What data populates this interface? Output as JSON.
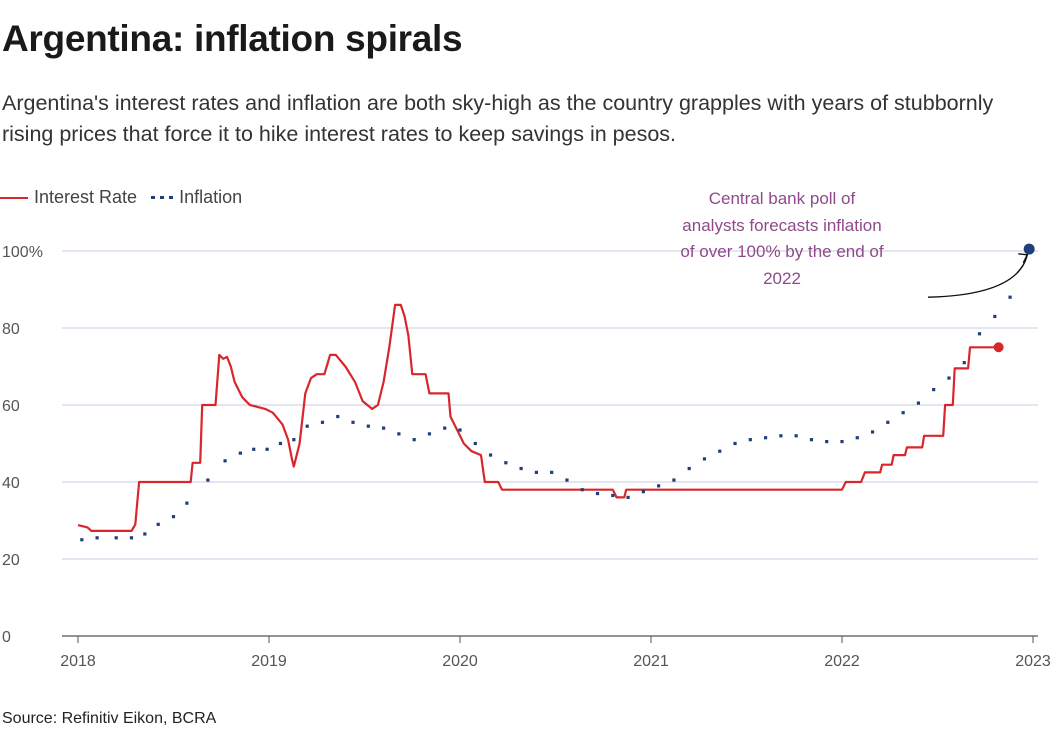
{
  "chart_data": {
    "type": "line",
    "title": "Argentina: inflation spirals",
    "subtitle": "Argentina's interest rates and inflation are both sky-high as the country grapples with years of stubbornly rising prices that force it to hike interest rates to keep savings in pesos.",
    "xlabel": "",
    "ylabel": "",
    "xlim": [
      2018,
      2023
    ],
    "ylim": [
      0,
      100
    ],
    "x_ticks": [
      2018,
      2019,
      2020,
      2021,
      2022,
      2023
    ],
    "x_tick_labels": [
      "2018",
      "2019",
      "2020",
      "2021",
      "2022",
      "2023"
    ],
    "y_ticks": [
      0,
      20,
      40,
      60,
      80,
      100
    ],
    "y_tick_labels": [
      "0",
      "20",
      "40",
      "60",
      "80",
      "100%"
    ],
    "grid": "horizontal",
    "legend_position": "top-left",
    "series": [
      {
        "name": "Interest Rate",
        "color": "#d8262c",
        "style": "line",
        "points": [
          [
            2018.0,
            28.8
          ],
          [
            2018.05,
            28.2
          ],
          [
            2018.07,
            27.3
          ],
          [
            2018.28,
            27.3
          ],
          [
            2018.3,
            29
          ],
          [
            2018.32,
            40
          ],
          [
            2018.59,
            40
          ],
          [
            2018.6,
            45
          ],
          [
            2018.64,
            45
          ],
          [
            2018.65,
            60
          ],
          [
            2018.72,
            60
          ],
          [
            2018.74,
            73
          ],
          [
            2018.76,
            72
          ],
          [
            2018.78,
            72.5
          ],
          [
            2018.8,
            70
          ],
          [
            2018.82,
            66
          ],
          [
            2018.86,
            62
          ],
          [
            2018.9,
            60
          ],
          [
            2018.94,
            59.5
          ],
          [
            2018.98,
            59
          ],
          [
            2019.02,
            58
          ],
          [
            2019.07,
            55
          ],
          [
            2019.1,
            51
          ],
          [
            2019.12,
            46
          ],
          [
            2019.13,
            44
          ],
          [
            2019.16,
            50
          ],
          [
            2019.19,
            63
          ],
          [
            2019.22,
            67
          ],
          [
            2019.25,
            68
          ],
          [
            2019.29,
            68
          ],
          [
            2019.32,
            73
          ],
          [
            2019.35,
            73
          ],
          [
            2019.4,
            70
          ],
          [
            2019.45,
            66
          ],
          [
            2019.49,
            61
          ],
          [
            2019.54,
            59
          ],
          [
            2019.57,
            60
          ],
          [
            2019.6,
            66
          ],
          [
            2019.63,
            75
          ],
          [
            2019.66,
            86
          ],
          [
            2019.69,
            86
          ],
          [
            2019.71,
            83
          ],
          [
            2019.73,
            78
          ],
          [
            2019.75,
            68
          ],
          [
            2019.82,
            68
          ],
          [
            2019.84,
            63
          ],
          [
            2019.94,
            63
          ],
          [
            2019.95,
            57
          ],
          [
            2019.97,
            55
          ],
          [
            2019.99,
            53
          ],
          [
            2020.02,
            50
          ],
          [
            2020.06,
            48
          ],
          [
            2020.11,
            47
          ],
          [
            2020.13,
            40
          ],
          [
            2020.2,
            40
          ],
          [
            2020.22,
            38
          ],
          [
            2020.8,
            38
          ],
          [
            2020.82,
            36
          ],
          [
            2020.86,
            36
          ],
          [
            2020.87,
            38
          ],
          [
            2022.0,
            38
          ],
          [
            2022.02,
            40
          ],
          [
            2022.1,
            40
          ],
          [
            2022.12,
            42.5
          ],
          [
            2022.2,
            42.5
          ],
          [
            2022.21,
            44.5
          ],
          [
            2022.26,
            44.5
          ],
          [
            2022.27,
            47
          ],
          [
            2022.33,
            47
          ],
          [
            2022.34,
            49
          ],
          [
            2022.42,
            49
          ],
          [
            2022.43,
            52
          ],
          [
            2022.53,
            52
          ],
          [
            2022.54,
            60
          ],
          [
            2022.58,
            60
          ],
          [
            2022.59,
            69.5
          ],
          [
            2022.66,
            69.5
          ],
          [
            2022.67,
            75
          ],
          [
            2022.82,
            75
          ]
        ],
        "end_marker": [
          2022.82,
          75
        ]
      },
      {
        "name": "Inflation",
        "color": "#1f3f7a",
        "style": "dotted",
        "points": [
          [
            2018.02,
            25
          ],
          [
            2018.1,
            25.5
          ],
          [
            2018.2,
            25.5
          ],
          [
            2018.28,
            25.5
          ],
          [
            2018.35,
            26.5
          ],
          [
            2018.42,
            29
          ],
          [
            2018.5,
            31
          ],
          [
            2018.57,
            34.5
          ],
          [
            2018.68,
            40.5
          ],
          [
            2018.77,
            45.5
          ],
          [
            2018.85,
            47.5
          ],
          [
            2018.92,
            48.5
          ],
          [
            2018.99,
            48.5
          ],
          [
            2019.06,
            50
          ],
          [
            2019.13,
            51
          ],
          [
            2019.2,
            54.5
          ],
          [
            2019.28,
            55.5
          ],
          [
            2019.36,
            57
          ],
          [
            2019.44,
            55.5
          ],
          [
            2019.52,
            54.5
          ],
          [
            2019.6,
            54
          ],
          [
            2019.68,
            52.5
          ],
          [
            2019.76,
            51
          ],
          [
            2019.84,
            52.5
          ],
          [
            2019.92,
            54
          ],
          [
            2020.0,
            53.5
          ],
          [
            2020.08,
            50
          ],
          [
            2020.16,
            47
          ],
          [
            2020.24,
            45
          ],
          [
            2020.32,
            43.5
          ],
          [
            2020.4,
            42.5
          ],
          [
            2020.48,
            42.5
          ],
          [
            2020.56,
            40.5
          ],
          [
            2020.64,
            38
          ],
          [
            2020.72,
            37
          ],
          [
            2020.8,
            36.5
          ],
          [
            2020.88,
            36
          ],
          [
            2020.96,
            37.5
          ],
          [
            2021.04,
            39
          ],
          [
            2021.12,
            40.5
          ],
          [
            2021.2,
            43.5
          ],
          [
            2021.28,
            46
          ],
          [
            2021.36,
            48
          ],
          [
            2021.44,
            50
          ],
          [
            2021.52,
            51
          ],
          [
            2021.6,
            51.5
          ],
          [
            2021.68,
            52
          ],
          [
            2021.76,
            52
          ],
          [
            2021.84,
            51
          ],
          [
            2021.92,
            50.5
          ],
          [
            2022.0,
            50.5
          ],
          [
            2022.08,
            51.5
          ],
          [
            2022.16,
            53
          ],
          [
            2022.24,
            55.5
          ],
          [
            2022.32,
            58
          ],
          [
            2022.4,
            60.5
          ],
          [
            2022.48,
            64
          ],
          [
            2022.56,
            67
          ],
          [
            2022.64,
            71
          ],
          [
            2022.72,
            78.5
          ],
          [
            2022.8,
            83
          ],
          [
            2022.88,
            88
          ]
        ],
        "end_marker": [
          2022.98,
          100.5
        ]
      }
    ],
    "annotation": {
      "text": "Central bank poll of analysts forecasts inflation of over 100% by the end of 2022",
      "lines": [
        "Central bank poll of",
        "analysts forecasts inflation",
        "of over 100% by the end of",
        "2022"
      ],
      "color": "#8e4a8a",
      "arrow_from": [
        2022.45,
        88
      ],
      "arrow_to": [
        2022.97,
        99
      ]
    },
    "source": "Source: Refinitiv Eikon, BCRA"
  }
}
